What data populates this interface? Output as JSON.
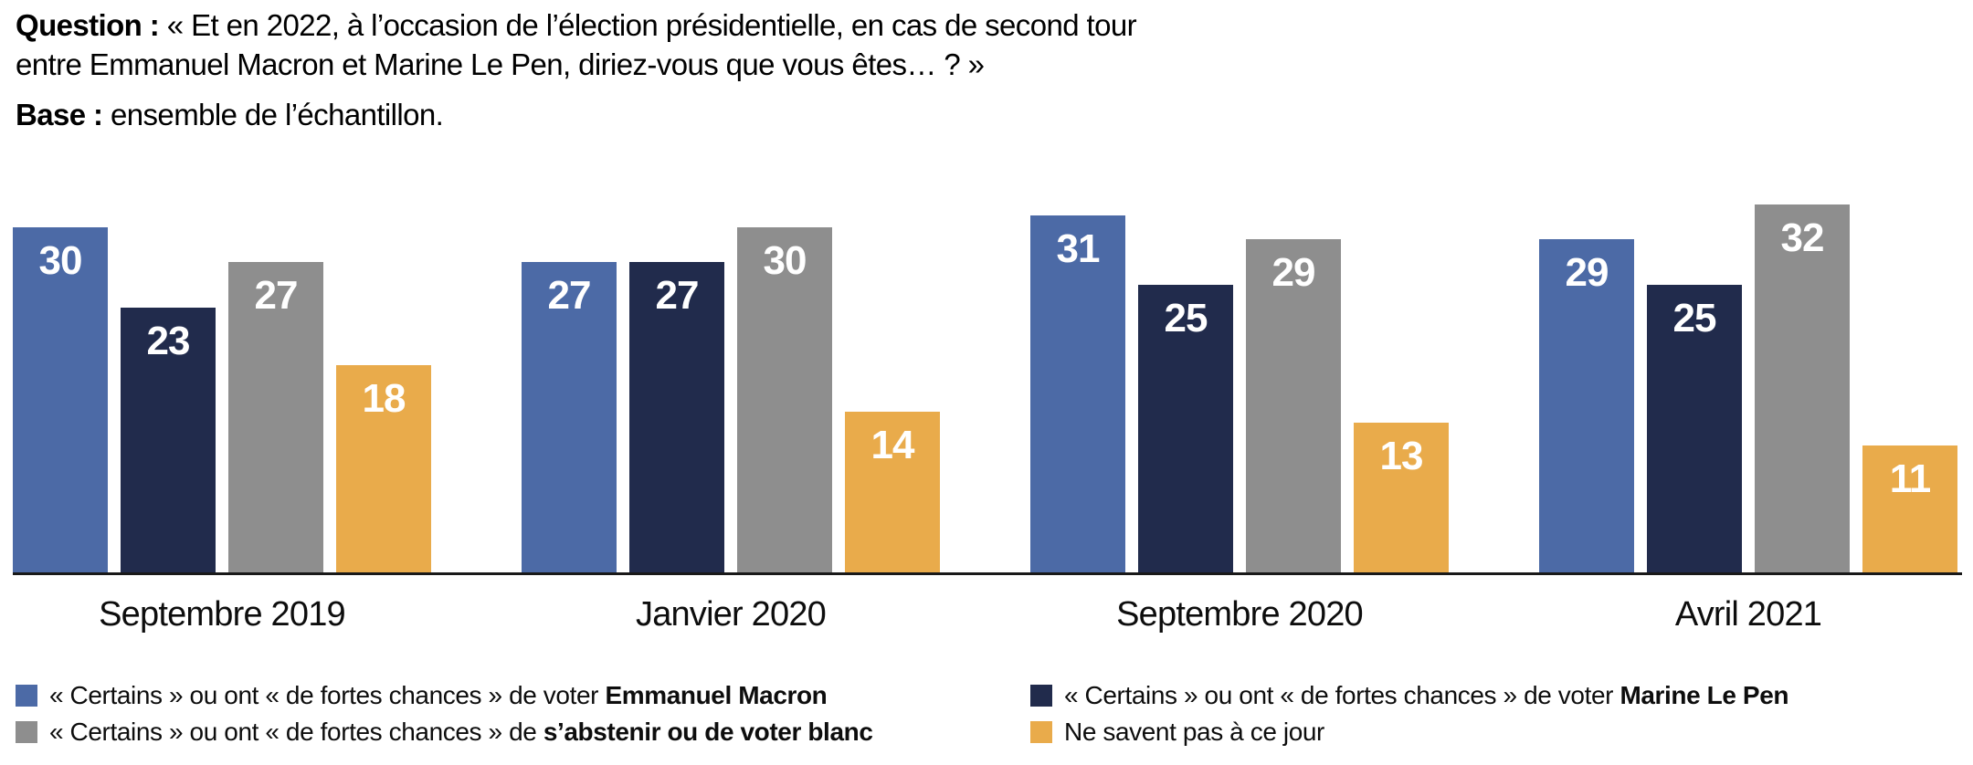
{
  "header": {
    "question_label": "Question :",
    "question_line1": "« Et en 2022, à l’occasion de l’élection présidentielle, en cas de second tour",
    "question_line2": "entre Emmanuel Macron et Marine Le Pen, diriez-vous que vous êtes… ? »",
    "base_label": "Base :",
    "base_text": "ensemble de l’échantillon."
  },
  "chart_data": {
    "type": "bar",
    "categories": [
      "Septembre 2019",
      "Janvier 2020",
      "Septembre 2020",
      "Avril 2021"
    ],
    "series": [
      {
        "key": "macron",
        "name": "« Certains » ou ont « de fortes chances » de voter Emmanuel Macron",
        "color": "#4c6aa6",
        "values": [
          30,
          27,
          31,
          29
        ]
      },
      {
        "key": "lepen",
        "name": "« Certains » ou ont « de fortes chances » de voter Marine Le Pen",
        "color": "#212b4c",
        "values": [
          23,
          27,
          25,
          25
        ]
      },
      {
        "key": "abstention",
        "name": "« Certains » ou ont « de fortes chances » de s’abstenir ou de voter blanc",
        "color": "#8e8e8e",
        "values": [
          27,
          30,
          29,
          32
        ]
      },
      {
        "key": "nsp",
        "name": "Ne savent pas à ce jour",
        "color": "#e9ab4b",
        "values": [
          18,
          14,
          13,
          11
        ]
      }
    ],
    "unit": "percent",
    "ylim": [
      0,
      32
    ],
    "grid": false,
    "legend_position": "bottom",
    "value_labels": "inside-top"
  },
  "legend": {
    "items": [
      {
        "prefix": "« Certains » ou ont « de fortes chances » de voter ",
        "bold": "Emmanuel Macron",
        "color": "#4c6aa6"
      },
      {
        "prefix": "« Certains » ou ont « de fortes chances » de ",
        "bold": "s’abstenir ou de voter blanc",
        "color": "#8e8e8e"
      },
      {
        "prefix": "« Certains » ou ont « de fortes chances » de voter ",
        "bold": "Marine Le Pen",
        "color": "#212b4c"
      },
      {
        "prefix": "Ne savent pas à ce jour",
        "bold": "",
        "color": "#e9ab4b"
      }
    ]
  }
}
